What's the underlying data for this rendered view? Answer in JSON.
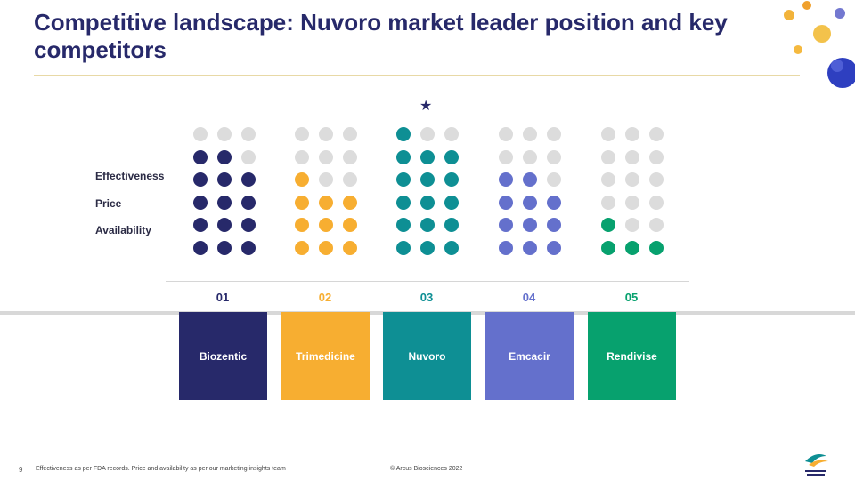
{
  "title": "Competitive landscape: Nuvoro market leader position and key competitors",
  "row_labels": {
    "effectiveness": "Effectiveness",
    "price": "Price",
    "availability": "Availability"
  },
  "competitors": [
    {
      "number": "01",
      "name": "Biozentic",
      "color": "#27296a",
      "filled_rows": 4,
      "partial_dots": 2
    },
    {
      "number": "02",
      "name": "Trimedicine",
      "color": "#f7ae31",
      "filled_rows": 3,
      "partial_dots": 1
    },
    {
      "number": "03",
      "name": "Nuvoro",
      "color": "#0e8f94",
      "filled_rows": 5,
      "partial_dots": 1,
      "leader": true
    },
    {
      "number": "04",
      "name": "Emcacir",
      "color": "#6470cc",
      "filled_rows": 3,
      "partial_dots": 2
    },
    {
      "number": "05",
      "name": "Rendivise",
      "color": "#07a16e",
      "filled_rows": 1,
      "partial_dots": 1
    }
  ],
  "empty_dot_color": "#dcdcdc",
  "leader_marker": "★",
  "footer": {
    "page_number": "9",
    "note": "Effectiveness as per FDA records. Price and availability as per our marketing insights team",
    "copyright": "© Arcus Biosciences 2022"
  }
}
